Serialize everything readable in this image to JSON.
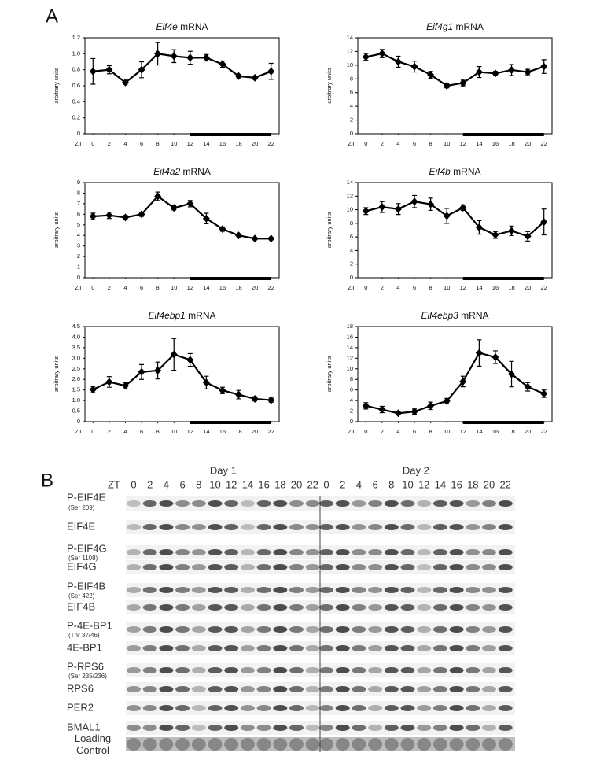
{
  "panel_a": {
    "letter": "A"
  },
  "chart_data": [
    {
      "type": "line",
      "title": "Eif4e mRNA",
      "ylabel": "arbitrary units",
      "xlabel": "ZT",
      "x": [
        0,
        2,
        4,
        6,
        8,
        10,
        12,
        14,
        16,
        18,
        20,
        22
      ],
      "xlim": [
        -1,
        23
      ],
      "xticks": [
        0,
        2,
        4,
        6,
        8,
        10,
        12,
        14,
        16,
        18,
        20,
        22
      ],
      "ylim": [
        0,
        1.2
      ],
      "yticks": [
        0,
        0.2,
        0.4,
        0.6,
        0.8,
        {
          "value": 1,
          "label": "1.0"
        },
        1.2
      ],
      "dark_phase": [
        12,
        22
      ],
      "series": [
        {
          "color": "#000000",
          "values": [
            0.78,
            0.8,
            0.64,
            0.8,
            1.0,
            0.97,
            0.95,
            0.95,
            0.87,
            0.72,
            0.7,
            0.78
          ],
          "errors": [
            0.16,
            0.05,
            0.02,
            0.1,
            0.14,
            0.08,
            0.08,
            0.04,
            0.04,
            0.02,
            0.02,
            0.1
          ]
        }
      ]
    },
    {
      "type": "line",
      "title": "Eif4g1 mRNA",
      "ylabel": "arbitrary units",
      "xlabel": "ZT",
      "x": [
        0,
        2,
        4,
        6,
        8,
        10,
        12,
        14,
        16,
        18,
        20,
        22
      ],
      "xlim": [
        -1,
        23
      ],
      "xticks": [
        0,
        2,
        4,
        6,
        8,
        10,
        12,
        14,
        16,
        18,
        20,
        22
      ],
      "ylim": [
        0,
        14
      ],
      "yticks": [
        0,
        2,
        4,
        6,
        8,
        10,
        12,
        14
      ],
      "dark_phase": [
        12,
        22
      ],
      "series": [
        {
          "color": "#000000",
          "values": [
            11.2,
            11.7,
            10.5,
            9.8,
            8.6,
            7.0,
            7.4,
            9.0,
            8.8,
            9.3,
            9.0,
            9.8
          ],
          "errors": [
            0.5,
            0.6,
            0.8,
            0.8,
            0.5,
            0.3,
            0.4,
            0.8,
            0.3,
            0.8,
            0.4,
            1.0
          ]
        }
      ]
    },
    {
      "type": "line",
      "title": "Eif4a2 mRNA",
      "ylabel": "arbitrary units",
      "xlabel": "ZT",
      "x": [
        0,
        2,
        4,
        6,
        8,
        10,
        12,
        14,
        16,
        18,
        20,
        22
      ],
      "xlim": [
        -1,
        23
      ],
      "xticks": [
        0,
        2,
        4,
        6,
        8,
        10,
        12,
        14,
        16,
        18,
        20,
        22
      ],
      "ylim": [
        0,
        9
      ],
      "yticks": [
        0,
        1,
        2,
        3,
        4,
        5,
        6,
        7,
        8,
        9
      ],
      "dark_phase": [
        12,
        22
      ],
      "series": [
        {
          "color": "#000000",
          "values": [
            5.8,
            5.9,
            5.7,
            6.0,
            7.7,
            6.6,
            7.0,
            5.6,
            4.6,
            4.0,
            3.7,
            3.7
          ],
          "errors": [
            0.3,
            0.3,
            0.2,
            0.2,
            0.4,
            0.2,
            0.3,
            0.5,
            0.2,
            0.1,
            0.1,
            0.1
          ]
        }
      ]
    },
    {
      "type": "line",
      "title": "Eif4b mRNA",
      "ylabel": "arbitrary units",
      "xlabel": "ZT",
      "x": [
        0,
        2,
        4,
        6,
        8,
        10,
        12,
        14,
        16,
        18,
        20,
        22
      ],
      "xlim": [
        -1,
        23
      ],
      "xticks": [
        0,
        2,
        4,
        6,
        8,
        10,
        12,
        14,
        16,
        18,
        20,
        22
      ],
      "ylim": [
        0,
        14
      ],
      "yticks": [
        0,
        2,
        4,
        6,
        8,
        10,
        12,
        14
      ],
      "dark_phase": [
        12,
        22
      ],
      "series": [
        {
          "color": "#000000",
          "values": [
            9.8,
            10.4,
            10.1,
            11.2,
            10.8,
            9.1,
            10.3,
            7.4,
            6.3,
            6.9,
            6.1,
            8.2
          ],
          "errors": [
            0.5,
            0.8,
            0.8,
            0.9,
            0.9,
            1.1,
            0.4,
            1.0,
            0.5,
            0.7,
            0.7,
            1.9
          ]
        }
      ]
    },
    {
      "type": "line",
      "title": "Eif4ebp1 mRNA",
      "ylabel": "arbitrary units",
      "xlabel": "ZT",
      "x": [
        0,
        2,
        4,
        6,
        8,
        10,
        12,
        14,
        16,
        18,
        20,
        22
      ],
      "xlim": [
        -1,
        23
      ],
      "xticks": [
        0,
        2,
        4,
        6,
        8,
        10,
        12,
        14,
        16,
        18,
        20,
        22
      ],
      "ylim": [
        0,
        4.5
      ],
      "yticks": [
        0,
        0.5,
        {
          "value": 1,
          "label": "1.0"
        },
        1.5,
        {
          "value": 2,
          "label": "2.0"
        },
        2.5,
        {
          "value": 3,
          "label": "3.0"
        },
        3.5,
        {
          "value": 4,
          "label": "4.0"
        },
        4.5
      ],
      "dark_phase": [
        12,
        22
      ],
      "series": [
        {
          "color": "#000000",
          "values": [
            1.52,
            1.88,
            1.7,
            2.35,
            2.42,
            3.18,
            2.92,
            1.85,
            1.48,
            1.28,
            1.08,
            1.02
          ],
          "errors": [
            0.15,
            0.25,
            0.15,
            0.35,
            0.4,
            0.75,
            0.3,
            0.3,
            0.15,
            0.2,
            0.1,
            0.1
          ]
        }
      ]
    },
    {
      "type": "line",
      "title": "Eif4ebp3 mRNA",
      "ylabel": "arbitrary units",
      "xlabel": "ZT",
      "x": [
        0,
        2,
        4,
        6,
        8,
        10,
        12,
        14,
        16,
        18,
        20,
        22
      ],
      "xlim": [
        -1,
        23
      ],
      "xticks": [
        0,
        2,
        4,
        6,
        8,
        10,
        12,
        14,
        16,
        18,
        20,
        22
      ],
      "ylim": [
        0,
        18
      ],
      "yticks": [
        0,
        2,
        4,
        6,
        8,
        10,
        12,
        14,
        16,
        18
      ],
      "dark_phase": [
        12,
        22
      ],
      "series": [
        {
          "color": "#000000",
          "values": [
            3.0,
            2.3,
            1.6,
            1.9,
            3.0,
            3.9,
            7.6,
            13.0,
            12.2,
            9.0,
            6.6,
            5.3
          ],
          "errors": [
            0.6,
            0.6,
            0.3,
            0.5,
            0.7,
            0.5,
            1.0,
            2.5,
            1.2,
            2.4,
            0.8,
            0.7
          ]
        }
      ]
    }
  ],
  "panel_b": {
    "letter": "B",
    "days": [
      "Day 1",
      "Day 2"
    ],
    "zt_label": "ZT",
    "zt": [
      "0",
      "2",
      "4",
      "6",
      "8",
      "10",
      "12",
      "14",
      "16",
      "18",
      "20",
      "22"
    ],
    "rows": [
      {
        "label": "P-EIF4E",
        "sub": "(Ser 209)"
      },
      {
        "label": "EIF4E"
      },
      {
        "label": "P-EIF4G",
        "sub": "(Ser 1108)"
      },
      {
        "label": "EIF4G"
      },
      {
        "label": "P-EIF4B",
        "sub": "(Ser 422)"
      },
      {
        "label": "EIF4B"
      },
      {
        "label": "P-4E-BP1",
        "sub": "(Thr 37/46)"
      },
      {
        "label": "4E-BP1"
      },
      {
        "label": "P-RPS6",
        "sub": "(Ser 235/236)"
      },
      {
        "label": "RPS6"
      },
      {
        "label": "PER2"
      },
      {
        "label": "BMAL1"
      },
      {
        "label": "Loading Control"
      }
    ]
  }
}
